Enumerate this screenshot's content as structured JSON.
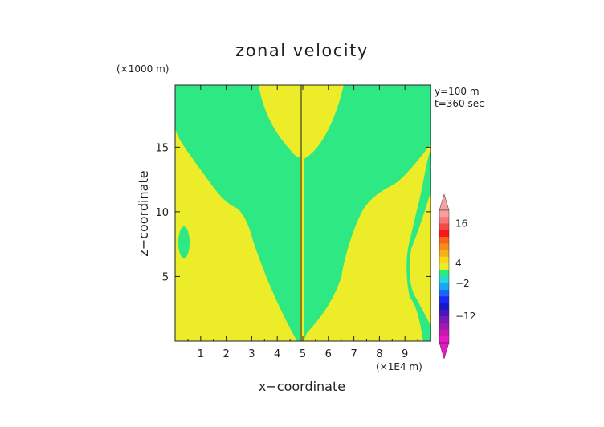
{
  "chart_data": {
    "type": "heatmap",
    "title": "zonal velocity",
    "xlabel": "x−coordinate",
    "ylabel": "z−coordinate",
    "x_unit": "(×1E4 m)",
    "y_unit": "(×1000 m)",
    "info_lines": [
      "y=100 m",
      "t=360 sec"
    ],
    "x_ticks": [
      1,
      2,
      3,
      4,
      5,
      6,
      7,
      8,
      9
    ],
    "y_ticks": [
      5,
      10,
      15
    ],
    "xlim": [
      0,
      10
    ],
    "ylim": [
      0,
      19.8
    ],
    "regions": [
      {
        "name": "background",
        "color": "#ecec28"
      },
      {
        "name": "near-zero band",
        "color": "#2ee884"
      }
    ],
    "colorbar": {
      "tick_labels": [
        "16",
        "4",
        "−2",
        "−12"
      ],
      "tick_values": [
        16,
        4,
        -2,
        -12
      ],
      "colors_top_to_bottom": [
        "#f8a0a0",
        "#f87878",
        "#f84848",
        "#f81818",
        "#f86418",
        "#f88c18",
        "#f8b018",
        "#f8d818",
        "#ecec28",
        "#2ee884",
        "#28d8d8",
        "#18a8f8",
        "#1868f8",
        "#1828f8",
        "#1818c8",
        "#4818b8",
        "#7818b8",
        "#a018b0",
        "#c818b0",
        "#e818c8"
      ]
    }
  }
}
